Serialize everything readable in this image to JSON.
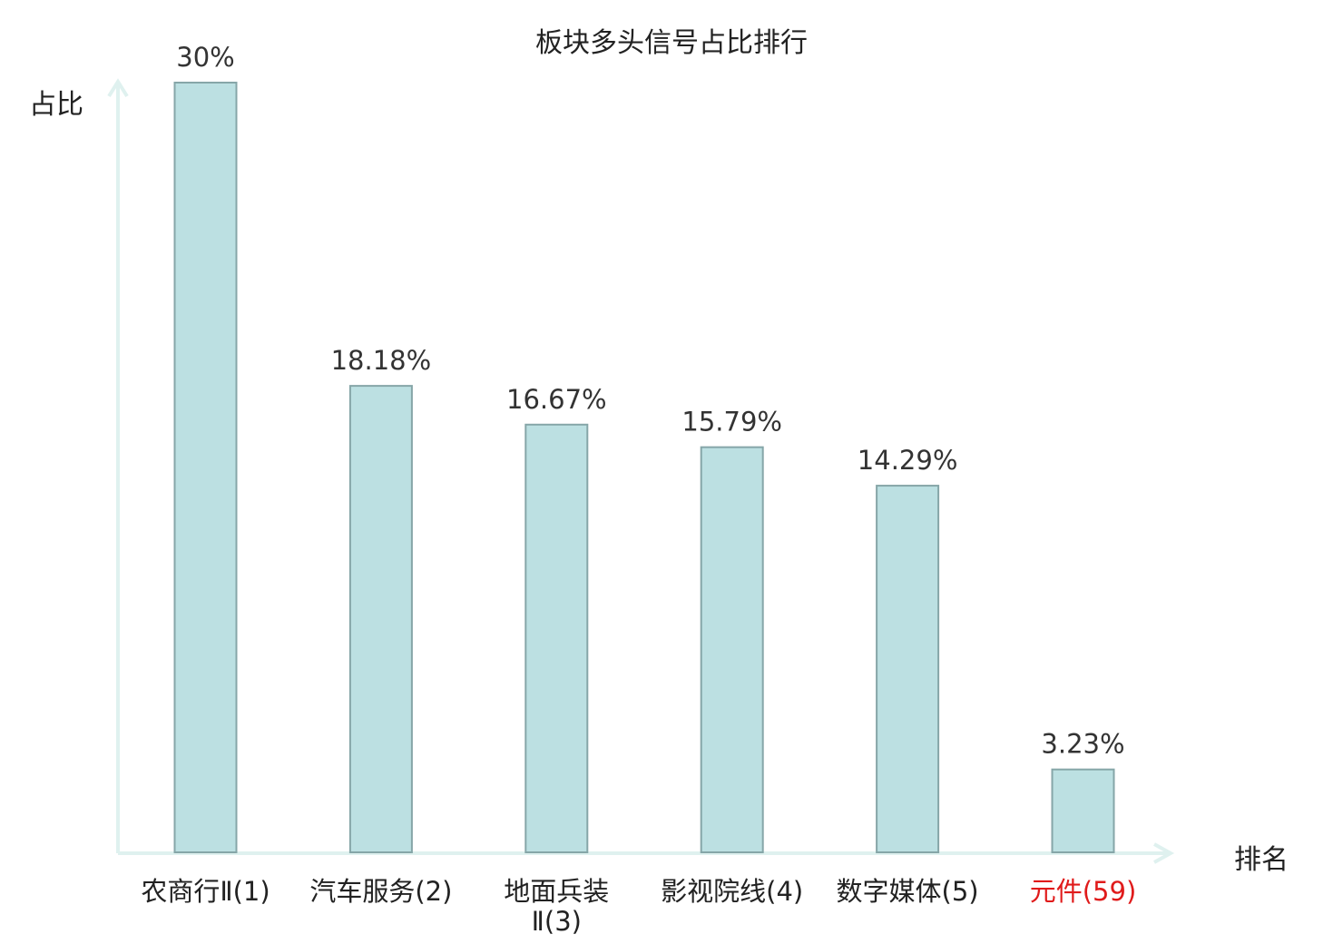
{
  "chart_data": {
    "type": "bar",
    "title": "板块多头信号占比排行",
    "ylabel": "占比",
    "xlabel": "排名",
    "categories": [
      "农商行Ⅱ(1)",
      "汽车服务(2)",
      "地面兵装Ⅱ(3)",
      "影视院线(4)",
      "数字媒体(5)",
      "元件(59)"
    ],
    "values": [
      30,
      18.18,
      16.67,
      15.79,
      14.29,
      3.23
    ],
    "value_labels": [
      "30%",
      "18.18%",
      "16.67%",
      "15.79%",
      "14.29%",
      "3.23%"
    ],
    "ylim": [
      0,
      30
    ],
    "grid": false,
    "highlight_index": 5,
    "colors": {
      "bar_fill": "#bce0e2",
      "bar_stroke": "#86a6a8",
      "axis": "#dff1ef",
      "highlight_text": "#e01b1b"
    }
  }
}
